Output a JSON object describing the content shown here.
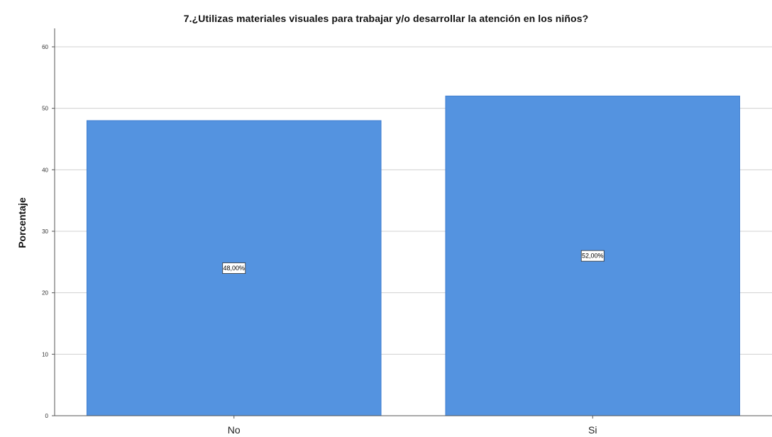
{
  "chart_data": {
    "type": "bar",
    "title": "7.¿Utilizas materiales visuales para trabajar y/o desarrollar la atención en los niños?",
    "xlabel": "",
    "ylabel": "Porcentaje",
    "categories": [
      "No",
      "Si"
    ],
    "values": [
      48,
      52
    ],
    "data_labels": [
      "48,00%",
      "52,00%"
    ],
    "ylim": [
      0,
      63
    ],
    "yticks": [
      0,
      10,
      20,
      30,
      40,
      50,
      60
    ],
    "grid": true,
    "legend": "none",
    "bar_color": "#5493e0",
    "bar_edge_color": "#3f7ed0"
  }
}
